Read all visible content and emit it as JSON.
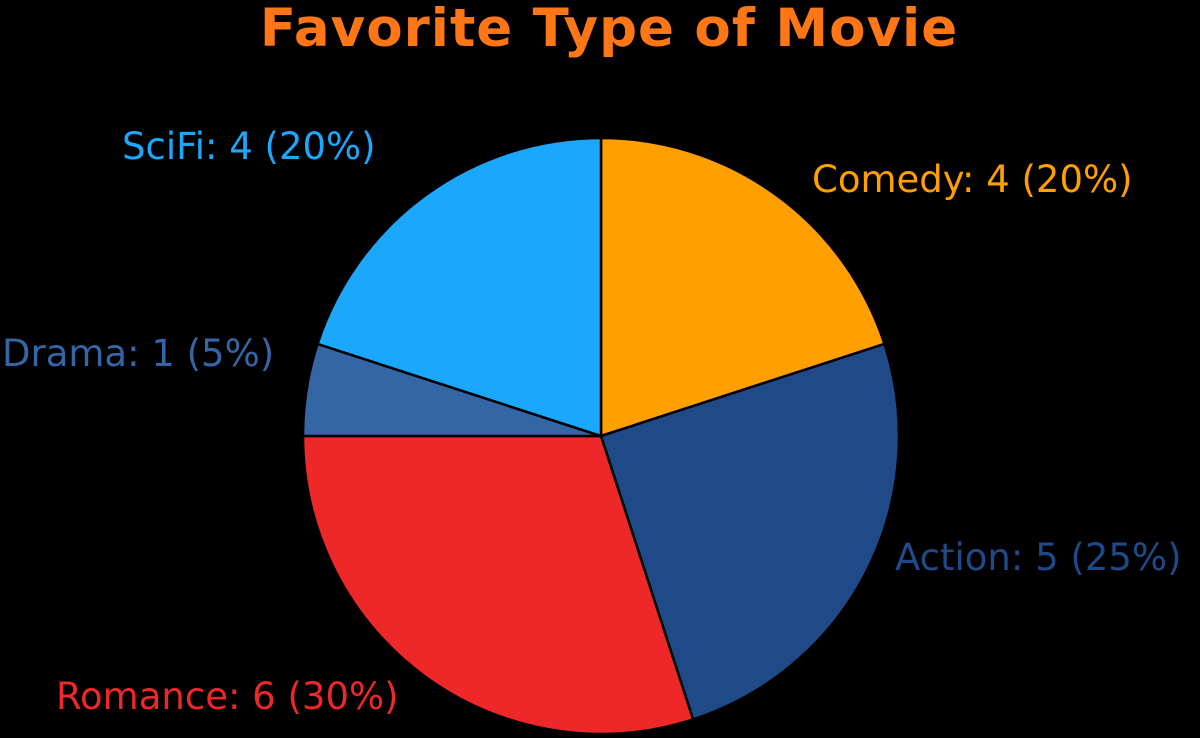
{
  "chart_data": {
    "type": "pie",
    "title": "Favorite Type of Movie",
    "title_color": "#FF7617",
    "background_color": "#000000",
    "slice_border_color": "#000000",
    "start": "12-o-clock",
    "direction": "clockwise",
    "total": 20,
    "slices": [
      {
        "key": "comedy",
        "category": "Comedy",
        "value": 4,
        "percent": 20,
        "color": "#FF9F00",
        "label": "Comedy: 4 (20%)"
      },
      {
        "key": "action",
        "category": "Action",
        "value": 5,
        "percent": 25,
        "color": "#204A87",
        "label": "Action: 5 (25%)"
      },
      {
        "key": "romance",
        "category": "Romance",
        "value": 6,
        "percent": 30,
        "color": "#EE2829",
        "label": "Romance: 6 (30%)"
      },
      {
        "key": "drama",
        "category": "Drama",
        "value": 1,
        "percent": 5,
        "color": "#3465A4",
        "label": "Drama: 1 (5%)"
      },
      {
        "key": "scifi",
        "category": "SciFi",
        "value": 4,
        "percent": 20,
        "color": "#1BA7FB",
        "label": "SciFi: 4 (20%)"
      }
    ]
  }
}
